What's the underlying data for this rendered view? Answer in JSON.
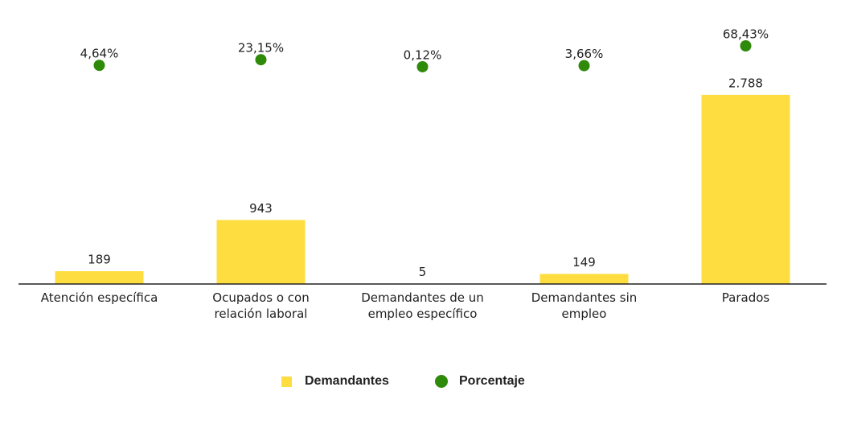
{
  "chart_data": {
    "type": "bar",
    "categories": [
      "Atención específica",
      "Ocupados o con relación laboral",
      "Demandantes de un empleo específico",
      "Demandantes sin empleo",
      "Parados"
    ],
    "series": [
      {
        "name": "Demandantes",
        "type": "bar",
        "color": "#fddd40",
        "values": [
          189,
          943,
          5,
          149,
          2788
        ],
        "value_labels": [
          "189",
          "943",
          "5",
          "149",
          "2.788"
        ]
      },
      {
        "name": "Porcentaje",
        "type": "dot",
        "axis": "y2",
        "color": "#2f8a0a",
        "values": [
          4.64,
          23.15,
          0.12,
          3.66,
          68.43
        ],
        "value_labels": [
          "4,64%",
          "23,15%",
          "0,12%",
          "3,66%",
          "68,43%"
        ]
      }
    ],
    "ylim": [
      0,
      3000
    ],
    "y2lim": [
      0,
      100
    ],
    "legend": "bottom"
  }
}
